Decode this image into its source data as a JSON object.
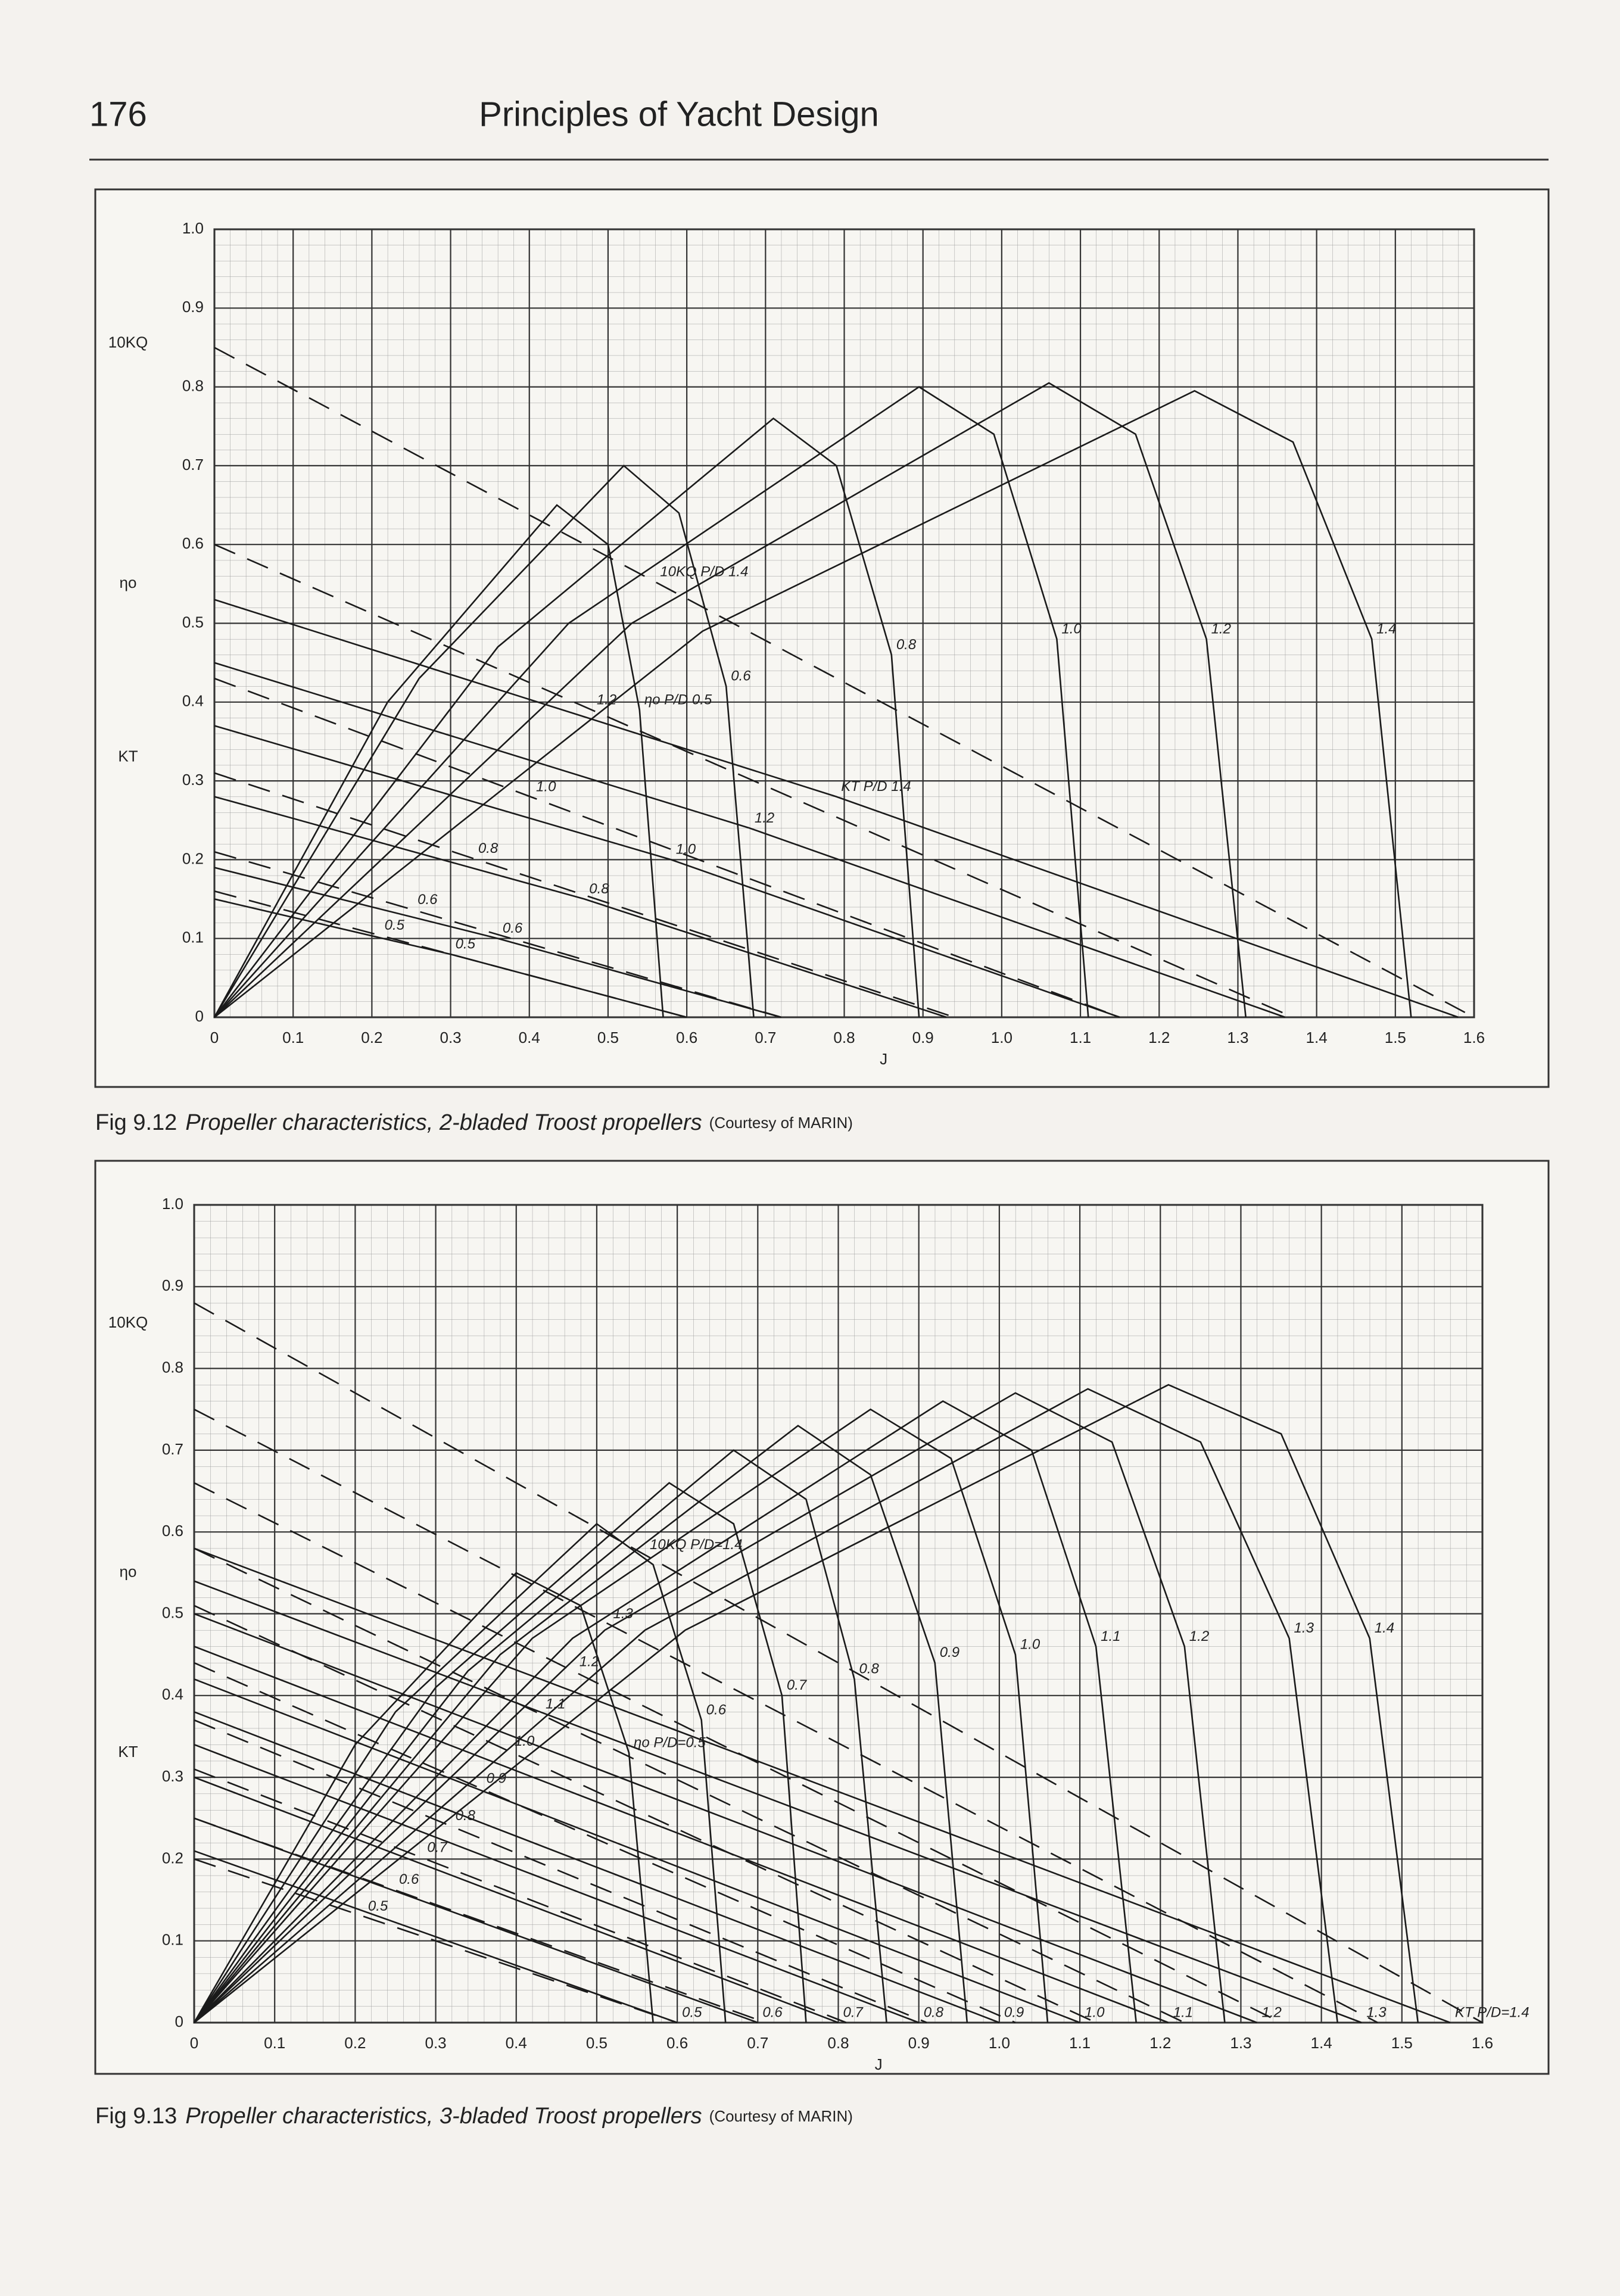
{
  "header": {
    "page_number": "176",
    "title": "Principles of Yacht Design"
  },
  "chart_data": [
    {
      "type": "line",
      "caption": {
        "figure": "Fig 9.12",
        "text": "Propeller characteristics, 2-bladed Troost propellers",
        "credit": "(Courtesy of MARIN)"
      },
      "xlabel": "J",
      "ylabels": {
        "kq": "10KQ",
        "eta": "ηo",
        "kt": "KT"
      },
      "xlim": [
        0,
        1.6
      ],
      "ylim": [
        0,
        1
      ],
      "xticks": [
        0,
        0.1,
        0.2,
        0.3,
        0.4,
        0.5,
        0.6,
        0.7,
        0.8,
        0.9,
        {
          "value": 1,
          "label": "1.0"
        },
        1.1,
        1.2,
        1.3,
        1.4,
        1.5,
        1.6
      ],
      "yticks": [
        0,
        0.1,
        0.2,
        0.3,
        0.4,
        0.5,
        0.6,
        0.7,
        0.8,
        0.9,
        {
          "value": 1,
          "label": "1.0"
        }
      ],
      "grid": true,
      "color": "#1a1a1a",
      "curves": {
        "eta": [
          {
            "label": "ηo P/D 0.5",
            "x": [
              0,
              0.22,
              0.435,
              0.5,
              0.54,
              0.57
            ],
            "values": [
              0,
              0.4,
              0.65,
              0.6,
              0.39,
              0
            ]
          },
          {
            "label": "0.6",
            "x": [
              0,
              0.26,
              0.52,
              0.59,
              0.65,
              0.685
            ],
            "values": [
              0,
              0.43,
              0.7,
              0.64,
              0.42,
              0
            ]
          },
          {
            "label": "0.8",
            "x": [
              0,
              0.36,
              0.71,
              0.79,
              0.86,
              0.895
            ],
            "values": [
              0,
              0.47,
              0.76,
              0.7,
              0.46,
              0
            ]
          },
          {
            "label": "1.0",
            "x": [
              0,
              0.45,
              0.895,
              0.99,
              1.07,
              1.11
            ],
            "values": [
              0,
              0.5,
              0.8,
              0.74,
              0.48,
              0
            ]
          },
          {
            "label": "1.2",
            "x": [
              0,
              0.53,
              1.06,
              1.17,
              1.26,
              1.31
            ],
            "values": [
              0,
              0.5,
              0.805,
              0.74,
              0.48,
              0
            ]
          },
          {
            "label": "1.4",
            "x": [
              0,
              0.62,
              1.245,
              1.37,
              1.47,
              1.52
            ],
            "values": [
              0,
              0.49,
              0.795,
              0.73,
              0.48,
              0
            ]
          }
        ],
        "kt": [
          {
            "label": "0.5",
            "x": [
              0,
              0.3,
              0.6
            ],
            "values": [
              0.15,
              0.08,
              0
            ]
          },
          {
            "label": "0.6",
            "x": [
              0,
              0.36,
              0.72
            ],
            "values": [
              0.19,
              0.1,
              0
            ]
          },
          {
            "label": "0.8",
            "x": [
              0,
              0.47,
              0.93
            ],
            "values": [
              0.28,
              0.15,
              0
            ]
          },
          {
            "label": "1.0",
            "x": [
              0,
              0.58,
              1.15
            ],
            "values": [
              0.37,
              0.2,
              0
            ]
          },
          {
            "label": "1.2",
            "x": [
              0,
              0.68,
              1.36
            ],
            "values": [
              0.45,
              0.24,
              0
            ]
          },
          {
            "label": "KT P/D 1.4",
            "x": [
              0,
              0.79,
              1.58
            ],
            "values": [
              0.53,
              0.28,
              0
            ]
          }
        ],
        "kq": [
          {
            "label": "0.5",
            "x": [
              0,
              0.6
            ],
            "values": [
              0.16,
              0
            ]
          },
          {
            "label": "0.6",
            "x": [
              0,
              0.72
            ],
            "values": [
              0.21,
              0
            ]
          },
          {
            "label": "0.8",
            "x": [
              0,
              0.94
            ],
            "values": [
              0.31,
              0
            ]
          },
          {
            "label": "1.0",
            "x": [
              0,
              1.15
            ],
            "values": [
              0.43,
              0
            ]
          },
          {
            "label": "1.2",
            "x": [
              0,
              1.37
            ],
            "values": [
              0.6,
              0
            ]
          },
          {
            "label": "10KQ P/D 1.4",
            "x": [
              0,
              1.6
            ],
            "values": [
              0.85,
              0
            ]
          }
        ]
      }
    },
    {
      "type": "line",
      "caption": {
        "figure": "Fig 9.13",
        "text": "Propeller characteristics, 3-bladed Troost propellers",
        "credit": "(Courtesy of MARIN)"
      },
      "xlabel": "J",
      "ylabels": {
        "kq": "10KQ",
        "eta": "ηo",
        "kt": "KT"
      },
      "xlim": [
        0,
        1.6
      ],
      "ylim": [
        0,
        1
      ],
      "xticks": [
        0,
        0.1,
        0.2,
        0.3,
        0.4,
        0.5,
        0.6,
        0.7,
        0.8,
        0.9,
        {
          "value": 1,
          "label": "1.0"
        },
        1.1,
        1.2,
        1.3,
        1.4,
        1.5,
        1.6
      ],
      "yticks": [
        0,
        0.1,
        0.2,
        0.3,
        0.4,
        0.5,
        0.6,
        0.7,
        0.8,
        0.9,
        {
          "value": 1,
          "label": "1.0"
        }
      ],
      "grid": true,
      "color": "#1a1a1a",
      "curves": {
        "eta": [
          {
            "label": "ηo P/D=0.5",
            "x": [
              0,
              0.2,
              0.4,
              0.48,
              0.54,
              0.57
            ],
            "values": [
              0,
              0.34,
              0.55,
              0.51,
              0.33,
              0
            ]
          },
          {
            "label": "0.6",
            "x": [
              0,
              0.25,
              0.5,
              0.57,
              0.63,
              0.66
            ],
            "values": [
              0,
              0.38,
              0.61,
              0.56,
              0.37,
              0
            ]
          },
          {
            "label": "0.7",
            "x": [
              0,
              0.3,
              0.59,
              0.67,
              0.73,
              0.76
            ],
            "values": [
              0,
              0.41,
              0.66,
              0.61,
              0.4,
              0
            ]
          },
          {
            "label": "0.8",
            "x": [
              0,
              0.34,
              0.67,
              0.76,
              0.82,
              0.86
            ],
            "values": [
              0,
              0.43,
              0.7,
              0.64,
              0.42,
              0
            ]
          },
          {
            "label": "0.9",
            "x": [
              0,
              0.38,
              0.75,
              0.84,
              0.92,
              0.96
            ],
            "values": [
              0,
              0.45,
              0.73,
              0.67,
              0.44,
              0
            ]
          },
          {
            "label": "1.0",
            "x": [
              0,
              0.42,
              0.84,
              0.94,
              1.02,
              1.06
            ],
            "values": [
              0,
              0.47,
              0.75,
              0.69,
              0.45,
              0
            ]
          },
          {
            "label": "1.1",
            "x": [
              0,
              0.47,
              0.93,
              1.04,
              1.12,
              1.17
            ],
            "values": [
              0,
              0.47,
              0.76,
              0.7,
              0.46,
              0
            ]
          },
          {
            "label": "1.2",
            "x": [
              0,
              0.51,
              1.02,
              1.14,
              1.23,
              1.28
            ],
            "values": [
              0,
              0.48,
              0.77,
              0.71,
              0.46,
              0
            ]
          },
          {
            "label": "1.3",
            "x": [
              0,
              0.56,
              1.11,
              1.25,
              1.36,
              1.42
            ],
            "values": [
              0,
              0.48,
              0.775,
              0.71,
              0.47,
              0
            ]
          },
          {
            "label": "1.4",
            "x": [
              0,
              0.61,
              1.21,
              1.35,
              1.46,
              1.52
            ],
            "values": [
              0,
              0.48,
              0.78,
              0.72,
              0.47,
              0
            ]
          }
        ],
        "kt": [
          {
            "label": "0.5",
            "x": [
              0,
              0.6
            ],
            "values": [
              0.21,
              0
            ]
          },
          {
            "label": "0.6",
            "x": [
              0,
              0.7
            ],
            "values": [
              0.25,
              0
            ]
          },
          {
            "label": "0.7",
            "x": [
              0,
              0.8
            ],
            "values": [
              0.3,
              0
            ]
          },
          {
            "label": "0.8",
            "x": [
              0,
              0.9
            ],
            "values": [
              0.34,
              0
            ]
          },
          {
            "label": "0.9",
            "x": [
              0,
              1
            ],
            "values": [
              0.38,
              0
            ]
          },
          {
            "label": "1.0",
            "x": [
              0,
              1.1
            ],
            "values": [
              0.42,
              0
            ]
          },
          {
            "label": "1.1",
            "x": [
              0,
              1.21
            ],
            "values": [
              0.46,
              0
            ]
          },
          {
            "label": "1.2",
            "x": [
              0,
              1.32
            ],
            "values": [
              0.5,
              0
            ]
          },
          {
            "label": "1.3",
            "x": [
              0,
              1.45
            ],
            "values": [
              0.54,
              0
            ]
          },
          {
            "label": "KT P/D=1.4",
            "x": [
              0,
              1.56
            ],
            "values": [
              0.58,
              0
            ]
          }
        ],
        "kq": [
          {
            "label": "0.5",
            "x": [
              0,
              0.6
            ],
            "values": [
              0.2,
              0
            ]
          },
          {
            "label": "0.6",
            "x": [
              0,
              0.71
            ],
            "values": [
              0.25,
              0
            ]
          },
          {
            "label": "0.7",
            "x": [
              0,
              0.81
            ],
            "values": [
              0.31,
              0
            ]
          },
          {
            "label": "0.8",
            "x": [
              0,
              0.91
            ],
            "values": [
              0.37,
              0
            ]
          },
          {
            "label": "0.9",
            "x": [
              0,
              1.02
            ],
            "values": [
              0.44,
              0
            ]
          },
          {
            "label": "1.0",
            "x": [
              0,
              1.12
            ],
            "values": [
              0.51,
              0
            ]
          },
          {
            "label": "1.1",
            "x": [
              0,
              1.23
            ],
            "values": [
              0.58,
              0
            ]
          },
          {
            "label": "1.2",
            "x": [
              0,
              1.35
            ],
            "values": [
              0.66,
              0
            ]
          },
          {
            "label": "1.3",
            "x": [
              0,
              1.47
            ],
            "values": [
              0.75,
              0
            ]
          },
          {
            "label": "10KQ P/D=1.4",
            "x": [
              0,
              1.6
            ],
            "values": [
              0.88,
              0
            ]
          }
        ]
      }
    }
  ]
}
